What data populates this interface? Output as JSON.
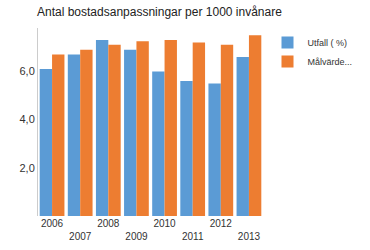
{
  "chart_data": {
    "type": "bar",
    "title": "Antal bostadsanpassningar per 1000 invånare",
    "categories": [
      "2006",
      "2007",
      "2008",
      "2009",
      "2010",
      "2011",
      "2012",
      "2013"
    ],
    "series": [
      {
        "name": "Utfall ( %)",
        "color": "#5b9bd5",
        "values": [
          6.1,
          6.7,
          7.3,
          6.9,
          6.0,
          5.6,
          5.5,
          6.6
        ]
      },
      {
        "name": "Målvärde...",
        "color": "#ed7d31",
        "values": [
          6.7,
          6.9,
          7.1,
          7.25,
          7.3,
          7.2,
          7.1,
          7.5
        ]
      }
    ],
    "ylim": [
      0,
      7.8
    ],
    "yticks": [
      {
        "value": 2,
        "label": "2,0"
      },
      {
        "value": 4,
        "label": "4,0"
      },
      {
        "value": 6,
        "label": "6,0"
      }
    ],
    "grid": false,
    "legend": "right"
  }
}
